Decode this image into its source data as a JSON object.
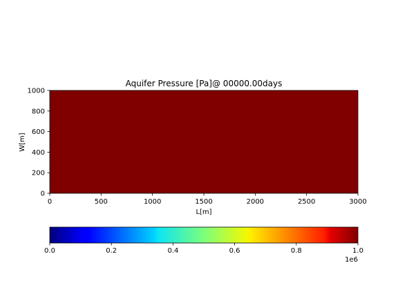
{
  "chart_data": {
    "type": "heatmap",
    "title": "Aquifer Pressure [Pa]@ 00000.00days",
    "xlabel": "L[m]",
    "ylabel": "W[m]",
    "xlim": [
      0,
      3000
    ],
    "ylim": [
      0,
      1000
    ],
    "xticks": [
      0,
      500,
      1000,
      1500,
      2000,
      2500,
      3000
    ],
    "yticks": [
      0,
      200,
      400,
      600,
      800,
      1000
    ],
    "field": {
      "value": 1000000,
      "x": [
        0,
        3000
      ],
      "y": [
        0,
        1000
      ]
    },
    "colormap": "jet",
    "colorbar": {
      "orientation": "horizontal",
      "ticks": [
        0.0,
        0.2,
        0.4,
        0.6,
        0.8,
        1.0
      ],
      "tick_labels": [
        "0.0",
        "0.2",
        "0.4",
        "0.6",
        "0.8",
        "1.0"
      ],
      "range": [
        0.0,
        1.0
      ],
      "offset_text": "1e6"
    },
    "field_color": "#800000",
    "grid": false
  }
}
